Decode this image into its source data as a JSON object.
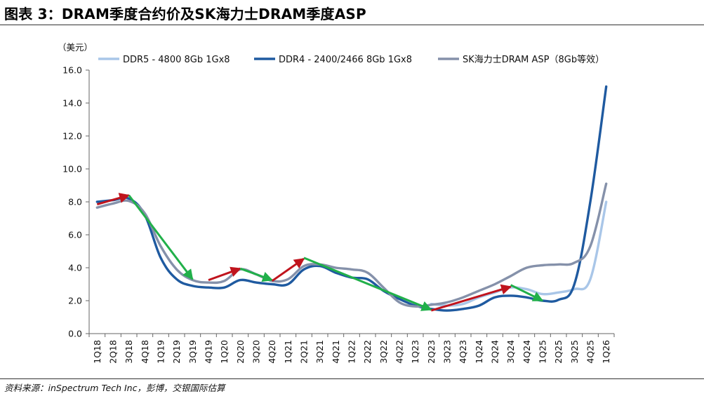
{
  "header": {
    "title": "图表 3：DRAM季度合约价及SK海力士DRAM季度ASP"
  },
  "footer": {
    "source": "资料来源：inSpectrum Tech Inc，彭博，交银国际估算"
  },
  "chart_data": {
    "type": "line",
    "ylabel": "（美元）",
    "ylim": [
      0,
      16
    ],
    "yticks": [
      "0.0",
      "2.0",
      "4.0",
      "6.0",
      "8.0",
      "10.0",
      "12.0",
      "14.0",
      "16.0"
    ],
    "grid": false,
    "legend": "top",
    "categories": [
      "1Q18",
      "2Q18",
      "3Q18",
      "4Q18",
      "1Q19",
      "2Q19",
      "3Q19",
      "4Q19",
      "1Q20",
      "2Q20",
      "3Q20",
      "4Q20",
      "1Q21",
      "2Q21",
      "3Q21",
      "4Q21",
      "1Q22",
      "2Q22",
      "3Q22",
      "4Q22",
      "1Q23",
      "2Q23",
      "3Q23",
      "4Q23",
      "1Q24",
      "2Q24",
      "3Q24",
      "4Q24",
      "1Q25",
      "2Q25",
      "3Q25",
      "4Q25",
      "1Q26"
    ],
    "series": [
      {
        "name": "DDR5 - 4800 8Gb 1Gx8",
        "color": "#a9c6e8",
        "values": [
          null,
          null,
          null,
          null,
          null,
          null,
          null,
          null,
          null,
          null,
          null,
          null,
          null,
          null,
          null,
          null,
          null,
          null,
          null,
          null,
          null,
          1.8,
          1.7,
          1.8,
          2.2,
          2.5,
          2.8,
          2.7,
          2.4,
          2.5,
          2.7,
          3.3,
          8.0
        ]
      },
      {
        "name": "DDR4 - 2400/2466 8Gb 1Gx8",
        "color": "#1f5aa0",
        "values": [
          8.0,
          8.1,
          8.2,
          7.2,
          4.6,
          3.3,
          2.9,
          2.8,
          2.8,
          3.25,
          3.1,
          3.0,
          3.0,
          3.9,
          4.1,
          3.7,
          3.4,
          3.3,
          2.6,
          2.1,
          1.7,
          1.5,
          1.4,
          1.5,
          1.7,
          2.2,
          2.3,
          2.2,
          2.0,
          2.05,
          3.0,
          8.0,
          15.0
        ]
      },
      {
        "name": "SK海力士DRAM ASP（8Gb等效）",
        "color": "#8591aa",
        "values": [
          7.65,
          7.9,
          8.05,
          7.3,
          5.3,
          3.9,
          3.25,
          3.1,
          3.2,
          3.9,
          3.6,
          3.2,
          3.3,
          4.1,
          4.2,
          4.0,
          3.9,
          3.7,
          2.8,
          1.9,
          1.65,
          1.75,
          1.9,
          2.2,
          2.6,
          3.0,
          3.5,
          4.0,
          4.15,
          4.2,
          4.3,
          5.3,
          9.1
        ]
      }
    ],
    "arrows": [
      {
        "direction": "up",
        "color": "#c0141d",
        "from": {
          "x": "1Q18",
          "y": 7.85
        },
        "to": {
          "x": "3Q18",
          "y": 8.4
        }
      },
      {
        "direction": "down",
        "color": "#21b04a",
        "from": {
          "x": "3Q18",
          "y": 8.4
        },
        "to": {
          "x": "3Q19",
          "y": 3.3
        }
      },
      {
        "direction": "up",
        "color": "#c0141d",
        "from": {
          "x": "4Q19",
          "y": 3.25
        },
        "to": {
          "x": "2Q20",
          "y": 3.95
        }
      },
      {
        "direction": "down",
        "color": "#21b04a",
        "from": {
          "x": "2Q20",
          "y": 3.95
        },
        "to": {
          "x": "4Q20",
          "y": 3.25
        }
      },
      {
        "direction": "up",
        "color": "#c0141d",
        "from": {
          "x": "4Q20",
          "y": 3.2
        },
        "to": {
          "x": "2Q21",
          "y": 4.55
        }
      },
      {
        "direction": "down",
        "color": "#21b04a",
        "from": {
          "x": "2Q21",
          "y": 4.6
        },
        "to": {
          "x": "2Q23",
          "y": 1.45
        }
      },
      {
        "direction": "up",
        "color": "#c0141d",
        "from": {
          "x": "2Q23",
          "y": 1.4
        },
        "to": {
          "x": "3Q24",
          "y": 2.85
        }
      },
      {
        "direction": "down",
        "color": "#21b04a",
        "from": {
          "x": "3Q24",
          "y": 2.95
        },
        "to": {
          "x": "1Q25",
          "y": 2.0
        }
      }
    ]
  }
}
